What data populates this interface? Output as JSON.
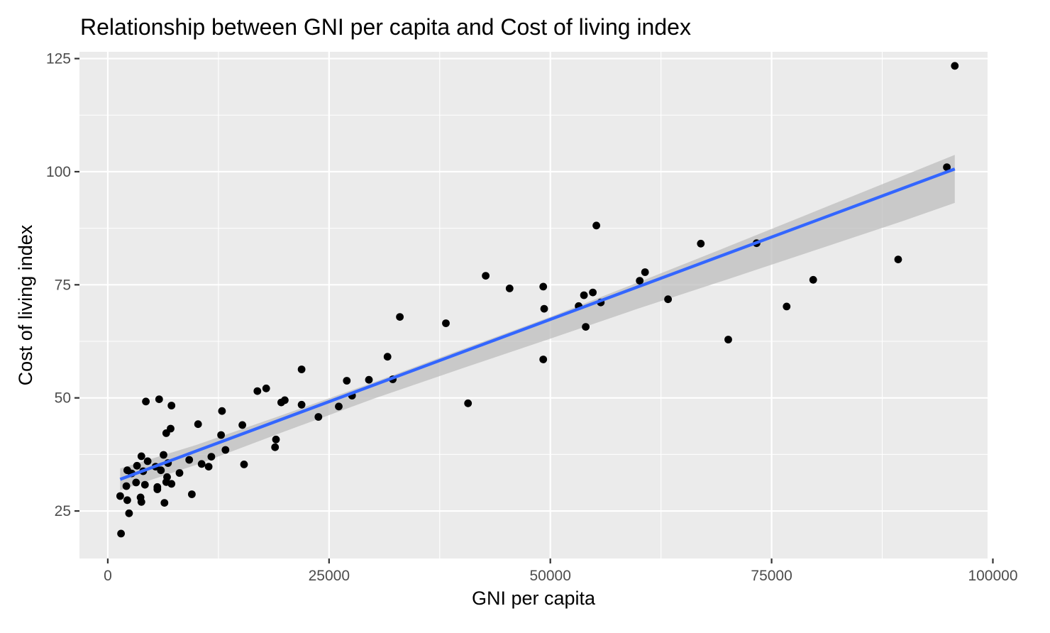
{
  "chart_data": {
    "type": "scatter",
    "title": "Relationship between GNI per capita and Cost of living index",
    "xlabel": "GNI per capita",
    "ylabel": "Cost of living index",
    "xlim": [
      -3200,
      99400
    ],
    "ylim": [
      14.5,
      126.5
    ],
    "x_ticks": [
      0,
      25000,
      50000,
      75000,
      100000
    ],
    "x_tick_labels": [
      "0",
      "25000",
      "50000",
      "75000",
      "100000"
    ],
    "y_ticks": [
      25,
      50,
      75,
      100,
      125
    ],
    "y_tick_labels": [
      "25",
      "50",
      "75",
      "100",
      "125"
    ],
    "grid": true,
    "colors": {
      "panel": "#ebebeb",
      "grid": "#ffffff",
      "points": "#000000",
      "fit_line": "#3366ff",
      "confidence_band": "#bebebe"
    },
    "points": [
      [
        1500,
        20
      ],
      [
        1400,
        28.3
      ],
      [
        2200,
        27.4
      ],
      [
        2400,
        24.5
      ],
      [
        2100,
        30.5
      ],
      [
        2200,
        34
      ],
      [
        2700,
        33.3
      ],
      [
        3300,
        35
      ],
      [
        3200,
        31.3
      ],
      [
        3700,
        28
      ],
      [
        3800,
        27
      ],
      [
        3800,
        37.1
      ],
      [
        4000,
        33.8
      ],
      [
        4200,
        30.8
      ],
      [
        4500,
        36
      ],
      [
        4300,
        49.2
      ],
      [
        5600,
        30.3
      ],
      [
        5600,
        29.8
      ],
      [
        5400,
        34.8
      ],
      [
        5800,
        49.7
      ],
      [
        6000,
        34
      ],
      [
        6300,
        37.4
      ],
      [
        6400,
        26.8
      ],
      [
        6700,
        32.5
      ],
      [
        6600,
        31.4
      ],
      [
        6800,
        35.6
      ],
      [
        6600,
        42.2
      ],
      [
        7100,
        43.2
      ],
      [
        7200,
        31
      ],
      [
        7200,
        48.3
      ],
      [
        8100,
        33.4
      ],
      [
        9200,
        36.3
      ],
      [
        9500,
        28.7
      ],
      [
        10200,
        44.2
      ],
      [
        10600,
        35.4
      ],
      [
        11400,
        34.8
      ],
      [
        11700,
        37
      ],
      [
        12800,
        41.8
      ],
      [
        12900,
        47.1
      ],
      [
        13300,
        38.5
      ],
      [
        15200,
        44
      ],
      [
        15400,
        35.3
      ],
      [
        16900,
        51.5
      ],
      [
        17900,
        52.1
      ],
      [
        18900,
        39.1
      ],
      [
        19000,
        40.8
      ],
      [
        19600,
        49
      ],
      [
        20000,
        49.5
      ],
      [
        21900,
        56.3
      ],
      [
        21900,
        48.5
      ],
      [
        23800,
        45.8
      ],
      [
        26100,
        48.1
      ],
      [
        27000,
        53.8
      ],
      [
        27600,
        50.5
      ],
      [
        29500,
        54
      ],
      [
        31600,
        59.1
      ],
      [
        32200,
        54.1
      ],
      [
        33000,
        67.9
      ],
      [
        38200,
        66.5
      ],
      [
        40700,
        48.8
      ],
      [
        42700,
        77
      ],
      [
        45400,
        74.2
      ],
      [
        49200,
        74.6
      ],
      [
        49300,
        69.7
      ],
      [
        49200,
        58.5
      ],
      [
        53200,
        70.3
      ],
      [
        53800,
        72.7
      ],
      [
        54000,
        65.7
      ],
      [
        54800,
        73.3
      ],
      [
        55200,
        88.1
      ],
      [
        55700,
        71.1
      ],
      [
        60100,
        75.9
      ],
      [
        60700,
        77.8
      ],
      [
        63300,
        71.8
      ],
      [
        67000,
        84.1
      ],
      [
        70100,
        62.9
      ],
      [
        73300,
        84.2
      ],
      [
        76700,
        70.2
      ],
      [
        79700,
        76.1
      ],
      [
        89300,
        80.6
      ],
      [
        94800,
        101
      ],
      [
        95700,
        123.4
      ]
    ],
    "fit_line": {
      "x": [
        1400,
        95700
      ],
      "y": [
        32,
        100.6
      ]
    },
    "confidence_band": {
      "x": [
        1400,
        10000,
        20000,
        30000,
        40000,
        50000,
        60000,
        70000,
        80000,
        90000,
        95700
      ],
      "upper": [
        34.4,
        39.6,
        46.4,
        53.4,
        60.7,
        67.9,
        75.6,
        83.4,
        91.3,
        99.2,
        103.7
      ],
      "lower": [
        29.6,
        35.2,
        42.6,
        49.8,
        56.5,
        63.1,
        69.8,
        76.2,
        82.7,
        89.2,
        93.1
      ]
    }
  }
}
